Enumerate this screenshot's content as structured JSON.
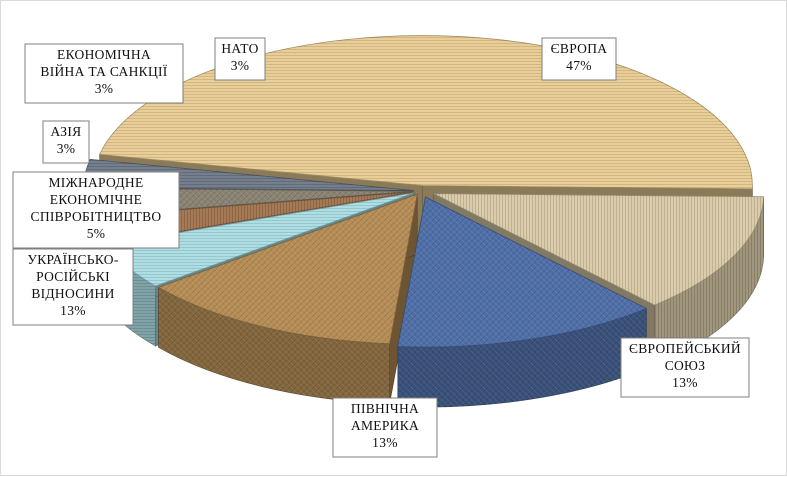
{
  "chart_data": {
    "type": "pie",
    "title": "",
    "style": "3d-exploded",
    "slices": [
      {
        "label": [
          "ЄВРОПА"
        ],
        "value": 47,
        "display": "47%",
        "color": "#e8cc93"
      },
      {
        "label": [
          "ЄВРОПЕЙСЬКИЙ",
          "СОЮЗ"
        ],
        "value": 13,
        "display": "13%",
        "color": "#d9c9a6"
      },
      {
        "label": [
          "ПІВНІЧНА",
          "АМЕРИКА"
        ],
        "value": 13,
        "display": "13%",
        "color": "#4f6fa8"
      },
      {
        "label": [
          "УКРАЇНСЬКО-",
          "РОСІЙСЬКІ",
          "ВІДНОСИНИ"
        ],
        "value": 13,
        "display": "13%",
        "color": "#b58d55"
      },
      {
        "label": [
          "МІЖНАРОДНЕ",
          "ЕКОНОМІЧНЕ",
          "СПІВРОБІТНИЦТВО"
        ],
        "value": 5,
        "display": "5%",
        "color": "#a9dde3"
      },
      {
        "label": [
          "АЗІЯ"
        ],
        "value": 3,
        "display": "3%",
        "color": "#a17550"
      },
      {
        "label": [
          "ЕКОНОМІЧНА",
          "ВІЙНА ТА САНКЦІЇ"
        ],
        "value": 3,
        "display": "3%",
        "color": "#8a8272"
      },
      {
        "label": [
          "НАТО"
        ],
        "value": 3,
        "display": "3%",
        "color": "#6d7887"
      }
    ]
  }
}
